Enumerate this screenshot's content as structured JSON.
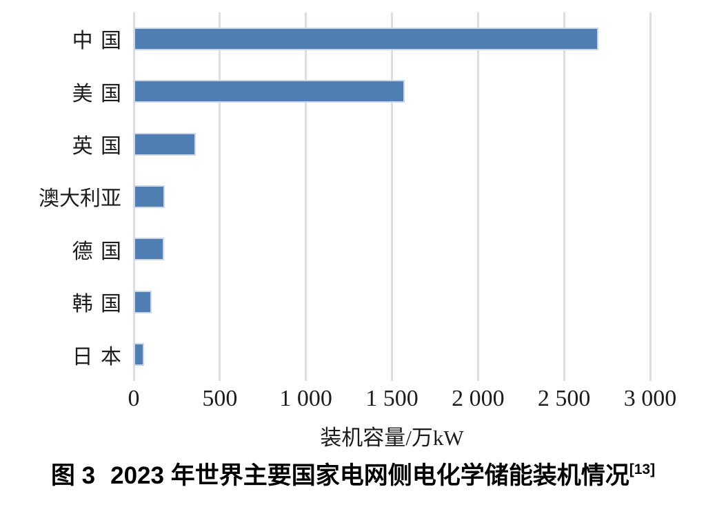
{
  "chart_data": {
    "type": "bar",
    "orientation": "horizontal",
    "categories": [
      "中国",
      "美国",
      "英国",
      "澳大利亚",
      "德国",
      "韩国",
      "日本"
    ],
    "values": [
      2700,
      1575,
      360,
      180,
      175,
      105,
      60
    ],
    "title": "",
    "xlabel": "装机容量/万kW",
    "ylabel": "",
    "xlim": [
      0,
      3000
    ],
    "xticks": {
      "values": [
        0,
        500,
        1000,
        1500,
        2000,
        2500,
        3000
      ],
      "labels": [
        "0",
        "500",
        "1 000",
        "1 500",
        "2 000",
        "2 500",
        "3 000"
      ]
    },
    "grid": "vertical-only",
    "legend": "none",
    "bar_color": "#4e7eb2",
    "bar_border_color": "#c9d7e9",
    "gridline_color": "#dedede"
  },
  "caption": {
    "figure_label": "图 3",
    "title": "2023 年世界主要国家电网侧电化学储能装机情况",
    "reference": "[13]"
  }
}
